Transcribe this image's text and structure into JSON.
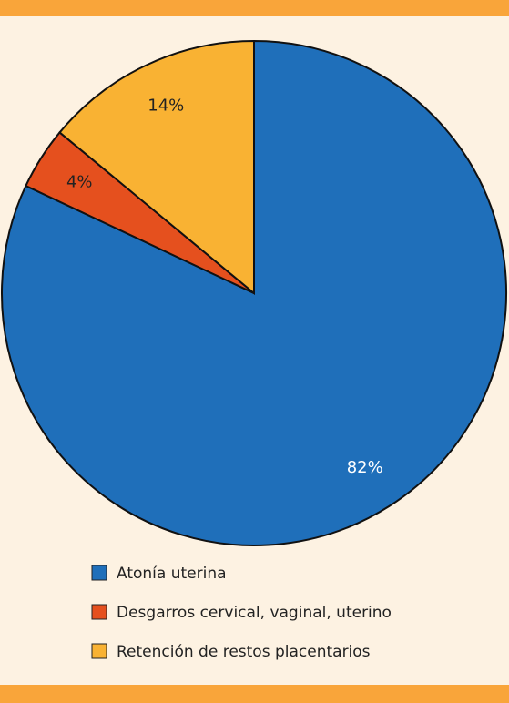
{
  "chart_data": {
    "type": "pie",
    "categories": [
      "Atonía uterina",
      "Desgarros cervical, vaginal, uterino",
      "Retención de restos placentarios"
    ],
    "values": [
      82,
      4,
      14
    ],
    "value_labels": [
      "82%",
      "4%",
      "14%"
    ],
    "colors": [
      "#1f6fba",
      "#e5501e",
      "#f9b233"
    ],
    "start_angle": 0,
    "direction": "clockwise"
  }
}
